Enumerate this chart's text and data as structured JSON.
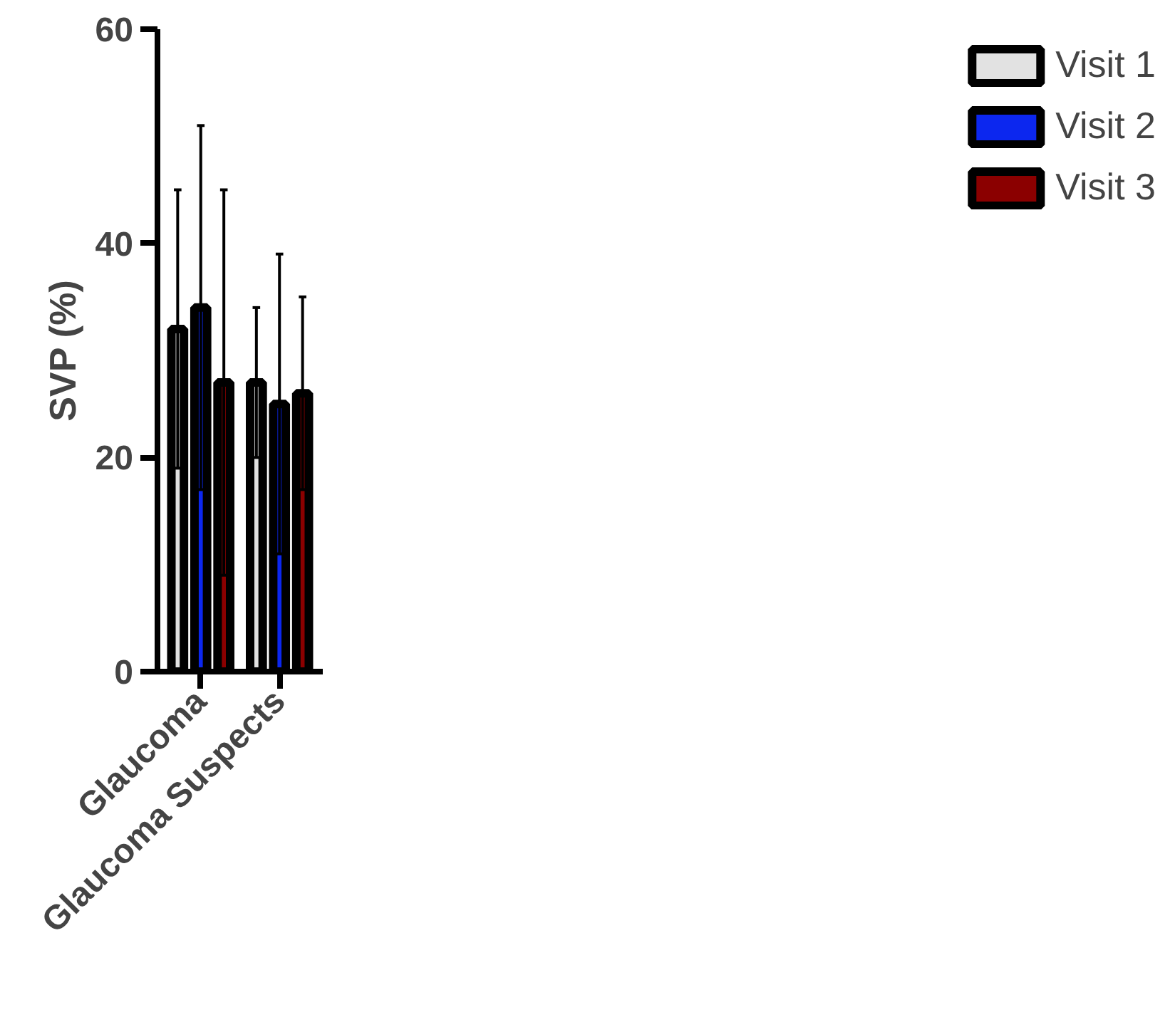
{
  "chart_data": {
    "type": "bar",
    "ylabel": "SVP (%)",
    "categories": [
      "Glaucoma",
      "Glaucoma Suspects"
    ],
    "series": [
      {
        "name": "Visit 1",
        "color": "#e2e2e2",
        "values": [
          32,
          27
        ],
        "errors": [
          13,
          7
        ]
      },
      {
        "name": "Visit 2",
        "color": "#0c27ef",
        "values": [
          34,
          25
        ],
        "errors": [
          17,
          14
        ]
      },
      {
        "name": "Visit 3",
        "color": "#8b0000",
        "values": [
          27,
          26
        ],
        "errors": [
          18,
          9
        ]
      }
    ],
    "ylim": [
      0,
      60
    ],
    "yticks": [
      0,
      20,
      40,
      60
    ],
    "grid": false,
    "legend": "top right"
  }
}
